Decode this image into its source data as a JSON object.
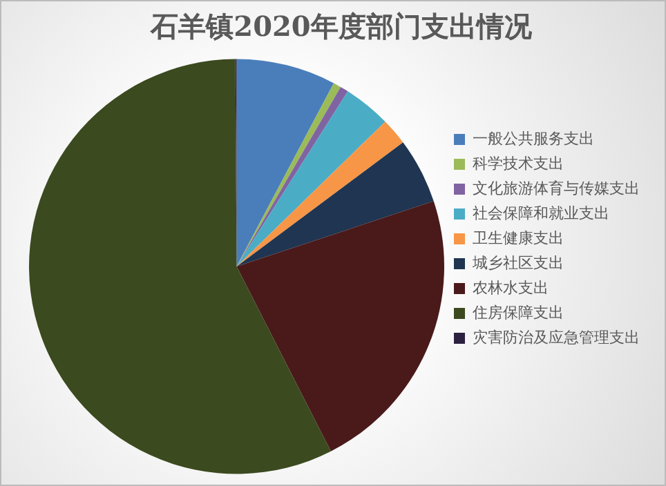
{
  "chart_data": {
    "type": "pie",
    "title": "石羊镇2020年度部门支出情况",
    "categories": [
      "一般公共服务支出",
      "科学技术支出",
      "文化旅游体育与传媒支出",
      "社会保障和就业支出",
      "卫生健康支出",
      "城乡社区支出",
      "农林水支出",
      "住房保障支出",
      "灾害防治及应急管理支出"
    ],
    "values": [
      7.75,
      0.6,
      0.65,
      3.7,
      2.1,
      5.1,
      22.6,
      57.4,
      0.1
    ],
    "colors": [
      "#4a7ebb",
      "#9bbb59",
      "#8064a2",
      "#4bacc6",
      "#f79646",
      "#1f3552",
      "#4a1a1a",
      "#3b4a1f",
      "#2c2140"
    ],
    "legend": "right"
  }
}
